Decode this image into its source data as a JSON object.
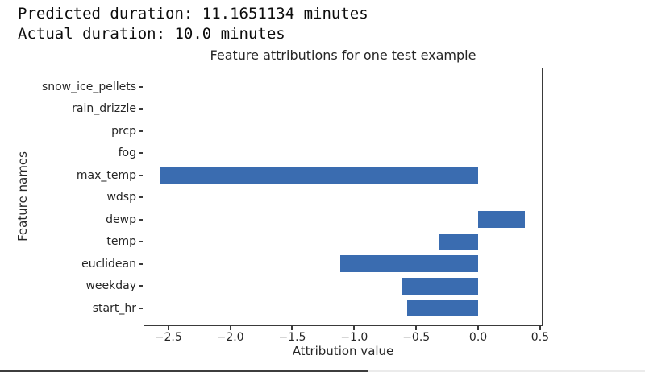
{
  "header": {
    "line1": "Predicted duration: 11.1651134 minutes",
    "line2": "Actual duration: 10.0 minutes"
  },
  "chart_data": {
    "type": "bar",
    "orientation": "horizontal",
    "title": "Feature attributions for one test example",
    "xlabel": "Attribution value",
    "ylabel": "Feature names",
    "categories": [
      "snow_ice_pellets",
      "rain_drizzle",
      "prcp",
      "fog",
      "max_temp",
      "wdsp",
      "dewp",
      "temp",
      "euclidean",
      "weekday",
      "start_hr"
    ],
    "values": [
      0,
      0,
      0,
      0,
      -2.57,
      0,
      0.38,
      -0.32,
      -1.11,
      -0.62,
      -0.57
    ],
    "xlim": [
      -2.7,
      0.52
    ],
    "xticks": [
      -2.5,
      -2.0,
      -1.5,
      -1.0,
      -0.5,
      0.0,
      0.5
    ],
    "xtick_labels": [
      "−2.5",
      "−2.0",
      "−1.5",
      "−1.0",
      "−0.5",
      "0.0",
      "0.5"
    ],
    "grid": false,
    "legend": null,
    "bar_color": "#3a6cb0",
    "tick_color": "#3a3a3a"
  },
  "progress": {
    "percent": 57,
    "filled_color": "#3d3d3d",
    "track_color": "#ebebeb"
  }
}
